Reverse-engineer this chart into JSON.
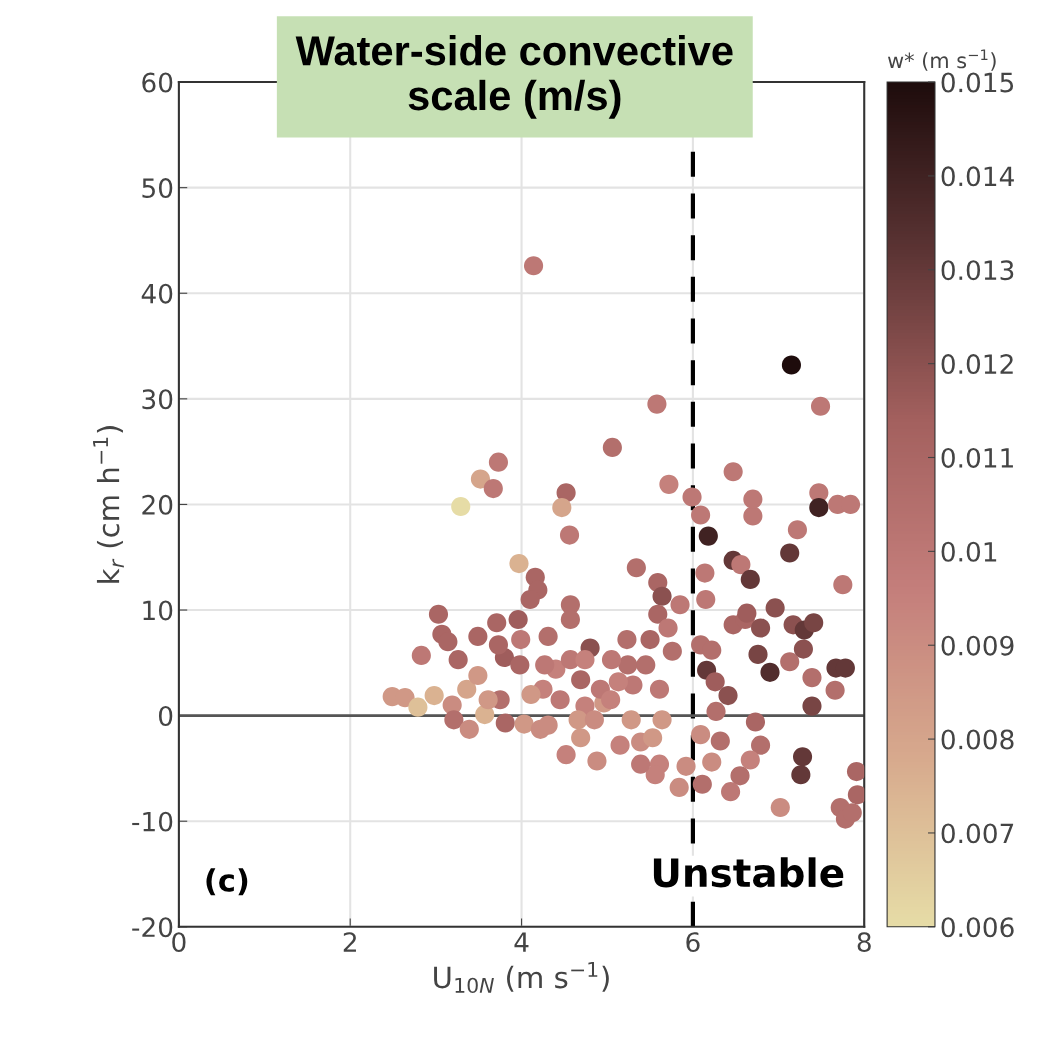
{
  "chart_data": {
    "type": "scatter",
    "title": "Water-side convective\nscale (m/s)",
    "xlabel": "U$_{10N}$ (m s$^{−1}$)",
    "ylabel": "k$_{r}$ (cm h$^{−1}$)",
    "clabel": "w* (m s$^{−1}$)",
    "xlim": [
      0,
      8
    ],
    "xticks": [
      0,
      2,
      4,
      6,
      8
    ],
    "ylim": [
      -20,
      60
    ],
    "yticks": [
      -20,
      -10,
      0,
      10,
      20,
      30,
      40,
      50,
      60
    ],
    "clim": [
      0.006,
      0.015
    ],
    "cticks": [
      0.006,
      0.007,
      0.008,
      0.009,
      0.01,
      0.011,
      0.012,
      0.013,
      0.014,
      0.015
    ],
    "grid": true,
    "marker": "circle",
    "ref_lines": [
      {
        "axis": "x",
        "value": 6,
        "color": "#000000",
        "line_style": "dashed"
      },
      {
        "axis": "y",
        "value": 0,
        "color": "#555555",
        "line_style": "solid"
      }
    ],
    "annotations": [
      "(c)",
      "Unstable"
    ],
    "x": [
      4.14,
      5.58,
      5.06,
      3.73,
      3.52,
      3.67,
      3.29,
      4.52,
      4.47,
      4.56,
      3.97,
      4.16,
      4.19,
      4.1,
      3.03,
      3.07,
      3.14,
      3.26,
      2.83,
      3.49,
      3.71,
      3.96,
      3.8,
      3.99,
      3.73,
      4.57,
      4.57,
      4.31,
      4.8,
      4.4,
      4.57,
      4.69,
      4.25,
      4.11,
      2.49,
      2.64,
      2.98,
      2.79,
      3.19,
      3.36,
      3.49,
      3.21,
      3.39,
      3.57,
      3.75,
      3.81,
      4.03,
      4.22,
      4.52,
      4.88,
      4.74,
      4.45,
      4.66,
      4.96,
      4.92,
      5.15,
      5.28,
      5.3,
      5.24,
      5.23,
      5.34,
      5.05,
      5.5,
      5.59,
      5.64,
      5.59,
      5.71,
      5.76,
      5.45,
      5.61,
      5.39,
      5.53,
      5.64,
      5.61,
      5.56,
      5.84,
      5.39,
      5.72,
      5.99,
      6.09,
      6.18,
      6.47,
      6.56,
      6.14,
      6.15,
      5.85,
      6.09,
      6.16,
      6.26,
      6.22,
      6.47,
      6.61,
      6.63,
      6.67,
      6.7,
      6.47,
      6.7,
      7.22,
      7.13,
      7.15,
      7.47,
      7.47,
      7.69,
      7.84,
      7.49,
      7.75,
      6.79,
      6.96,
      7.17,
      7.3,
      7.41,
      6.9,
      6.76,
      7.13,
      7.29,
      7.39,
      7.67,
      7.78,
      7.66,
      7.39,
      6.41,
      6.27,
      6.73,
      6.32,
      6.09,
      6.79,
      6.67,
      6.55,
      6.44,
      6.11,
      5.92,
      6.22,
      7.02,
      7.28,
      7.26,
      7.91,
      7.72,
      7.92,
      7.78,
      7.86,
      5.13,
      4.74,
      4.27,
      3.98,
      3.61,
      4.69,
      4.31,
      4.85,
      5.04
    ],
    "values": [
      42.6,
      29.5,
      25.4,
      24.0,
      22.4,
      21.5,
      19.8,
      21.1,
      19.7,
      17.1,
      14.4,
      13.1,
      11.9,
      11.0,
      9.6,
      7.7,
      7.0,
      5.3,
      5.7,
      7.5,
      8.8,
      9.1,
      5.5,
      7.2,
      6.7,
      10.5,
      9.1,
      7.5,
      6.4,
      4.4,
      5.3,
      3.4,
      2.5,
      2.0,
      1.8,
      1.7,
      1.9,
      0.8,
      1.0,
      2.5,
      3.8,
      -0.4,
      -1.3,
      0.1,
      1.5,
      -0.7,
      -0.8,
      -1.3,
      -3.7,
      -4.3,
      0.9,
      1.5,
      -0.4,
      1.2,
      2.5,
      -2.8,
      -0.4,
      2.9,
      4.8,
      7.2,
      14.0,
      5.3,
      7.2,
      12.6,
      11.3,
      9.6,
      8.3,
      6.1,
      4.8,
      2.5,
      -2.5,
      -2.1,
      -0.4,
      -4.6,
      -5.6,
      -6.8,
      -4.6,
      21.9,
      20.7,
      19.0,
      17.0,
      14.7,
      14.3,
      13.5,
      11.0,
      10.5,
      6.7,
      4.3,
      3.2,
      6.2,
      8.6,
      9.1,
      9.7,
      12.9,
      18.9,
      23.1,
      20.5,
      17.6,
      15.4,
      33.2,
      21.1,
      19.7,
      20.0,
      20.0,
      29.3,
      12.4,
      8.3,
      10.2,
      8.6,
      8.1,
      8.8,
      4.1,
      5.8,
      5.1,
      6.3,
      3.6,
      4.5,
      4.5,
      2.4,
      0.9,
      1.9,
      0.4,
      -0.6,
      -2.4,
      -1.8,
      -2.8,
      -4.2,
      -5.7,
      -7.2,
      -6.5,
      -4.8,
      -4.4,
      -8.7,
      -3.9,
      -5.6,
      -5.3,
      -8.7,
      -7.5,
      -9.8,
      -9.2,
      3.2,
      5.3,
      4.8,
      4.8,
      1.5,
      -2.1,
      -0.9,
      -0.4,
      1.5
    ],
    "cvalues": [
      0.01,
      0.01,
      0.0105,
      0.01,
      0.008,
      0.01,
      0.006,
      0.011,
      0.008,
      0.01,
      0.0075,
      0.011,
      0.011,
      0.011,
      0.011,
      0.011,
      0.011,
      0.011,
      0.01,
      0.011,
      0.011,
      0.0115,
      0.0115,
      0.01,
      0.011,
      0.0105,
      0.0105,
      0.0105,
      0.012,
      0.0095,
      0.01,
      0.011,
      0.0095,
      0.0085,
      0.0085,
      0.0085,
      0.0075,
      0.007,
      0.009,
      0.008,
      0.0085,
      0.0105,
      0.009,
      0.0075,
      0.0105,
      0.011,
      0.0085,
      0.009,
      0.0095,
      0.009,
      0.0095,
      0.01,
      0.0085,
      0.0085,
      0.01,
      0.0095,
      0.0085,
      0.01,
      0.0105,
      0.0105,
      0.0105,
      0.01,
      0.011,
      0.011,
      0.012,
      0.011,
      0.01,
      0.0105,
      0.0105,
      0.01,
      0.009,
      0.0085,
      0.0085,
      0.0095,
      0.0095,
      0.009,
      0.01,
      0.0095,
      0.01,
      0.01,
      0.014,
      0.013,
      0.01,
      0.01,
      0.01,
      0.01,
      0.0105,
      0.013,
      0.0115,
      0.0105,
      0.011,
      0.011,
      0.0115,
      0.013,
      0.01,
      0.01,
      0.01,
      0.01,
      0.013,
      0.015,
      0.01,
      0.014,
      0.01,
      0.01,
      0.01,
      0.01,
      0.012,
      0.012,
      0.012,
      0.013,
      0.0125,
      0.0135,
      0.0125,
      0.0105,
      0.012,
      0.0105,
      0.013,
      0.013,
      0.0105,
      0.0125,
      0.012,
      0.0105,
      0.011,
      0.0105,
      0.009,
      0.0105,
      0.0095,
      0.0105,
      0.01,
      0.0105,
      0.009,
      0.009,
      0.009,
      0.013,
      0.013,
      0.011,
      0.0105,
      0.011,
      0.0105,
      0.0105,
      0.0095,
      0.0095,
      0.01,
      0.011,
      0.0085,
      0.0085,
      0.009,
      0.009,
      0.0095
    ]
  }
}
